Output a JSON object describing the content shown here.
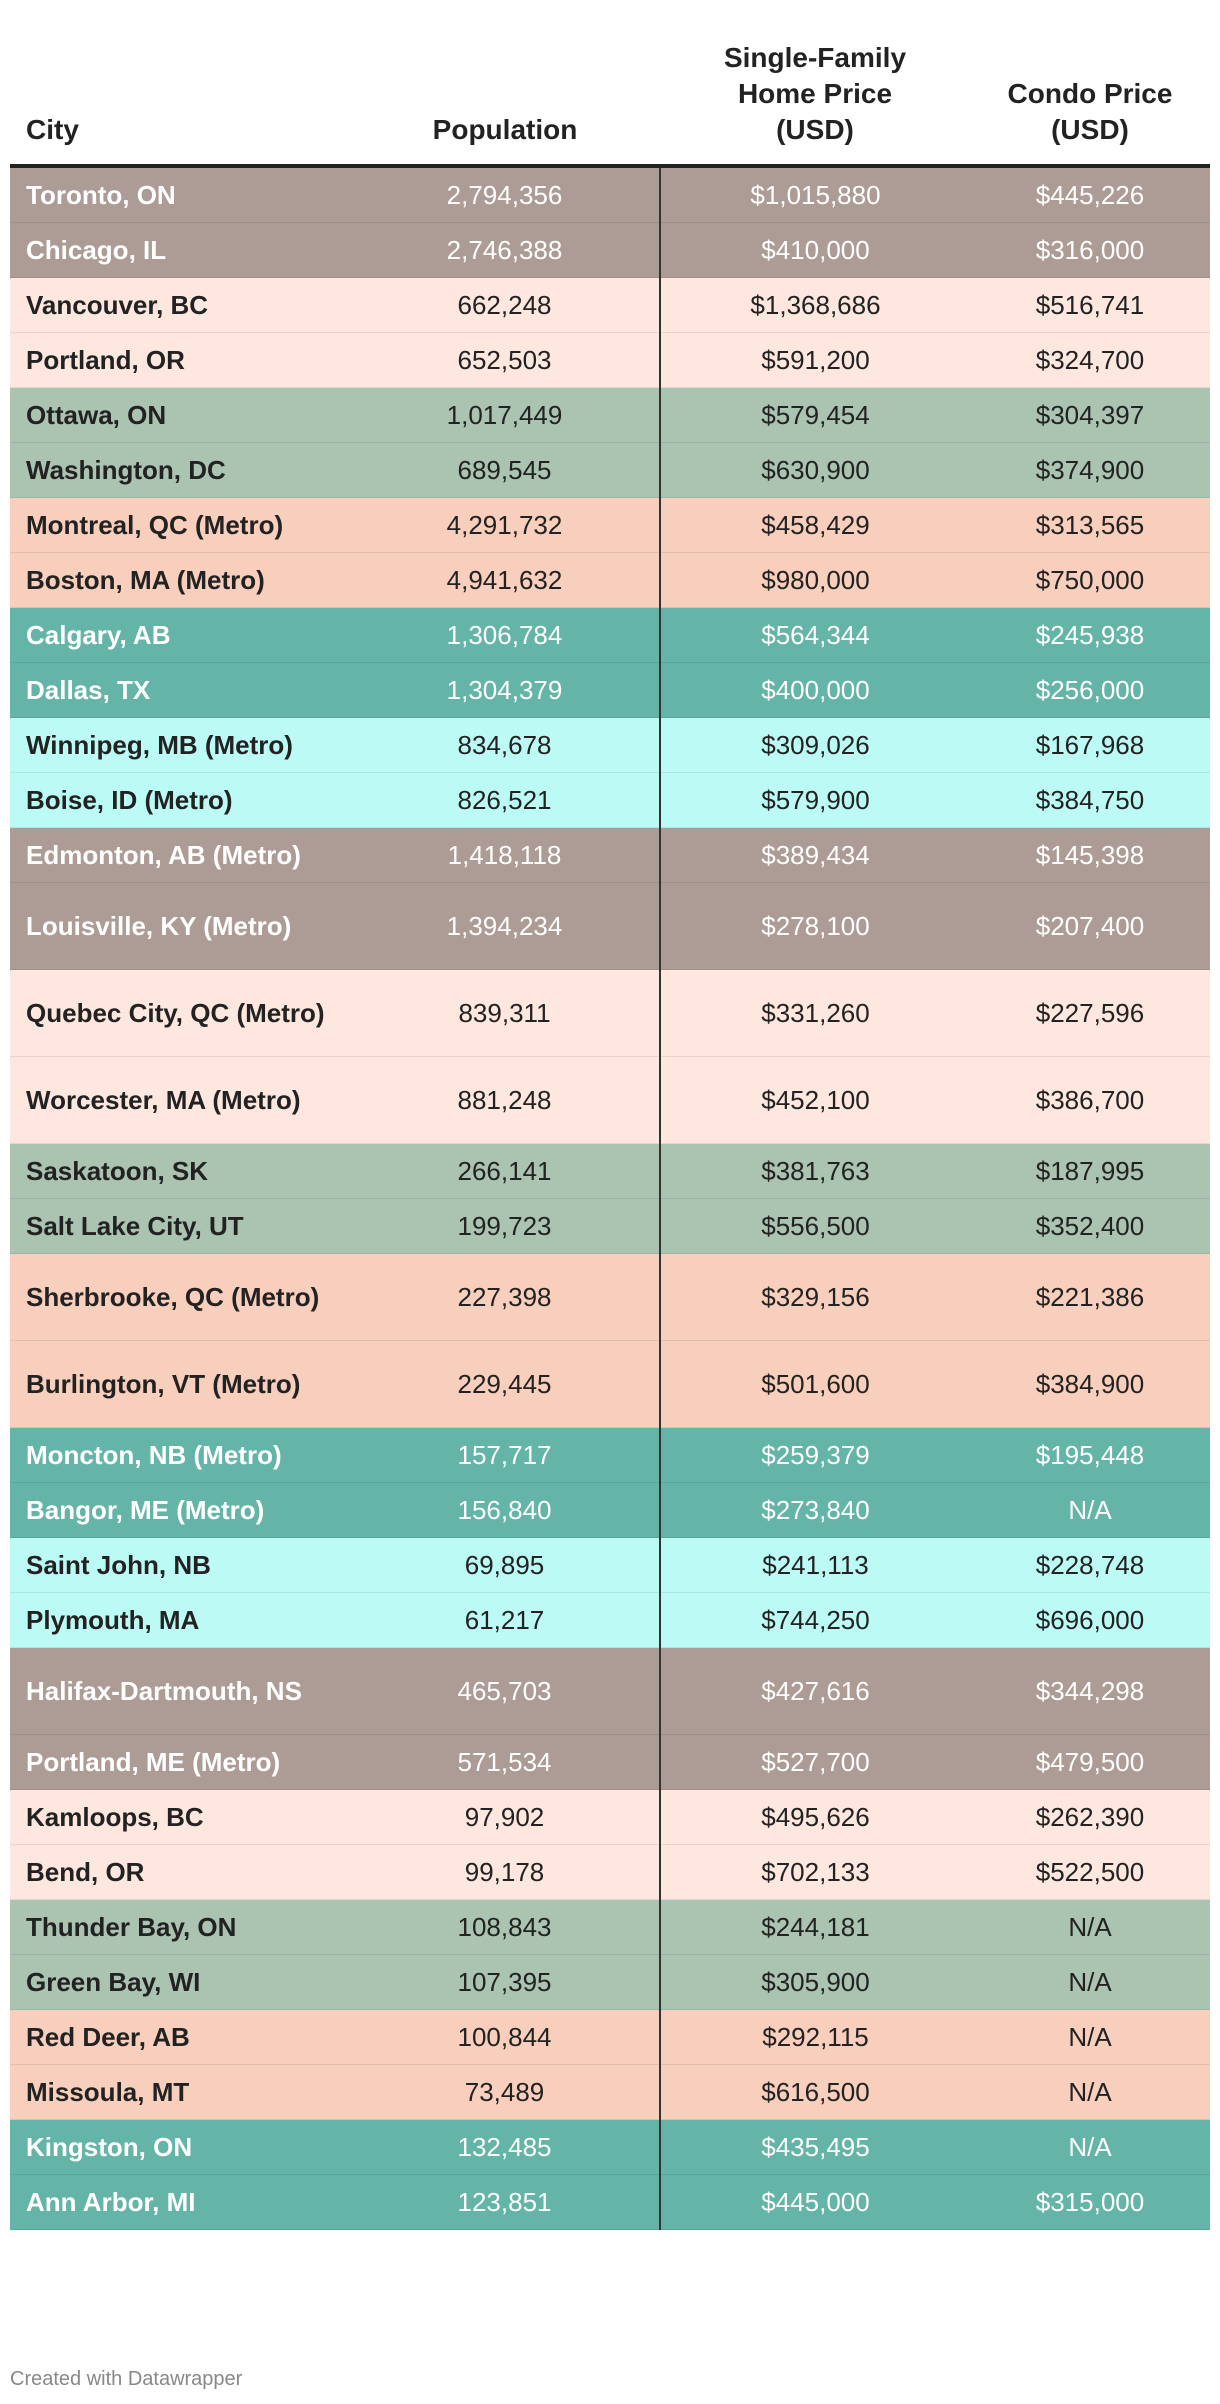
{
  "chart_data": {
    "type": "table",
    "columns": [
      "City",
      "Population",
      "Single-Family\nHome Price\n(USD)",
      "Condo Price\n(USD)"
    ],
    "row_colors": [
      "#ac9c95",
      "#fde7df",
      "#abc3b1",
      "#f8cfbc",
      "#64b4a8",
      "#bcfaf6"
    ],
    "rows": [
      {
        "city": "Toronto, ON",
        "population": "2,794,356",
        "home_price": "$1,015,880",
        "condo_price": "$445,226"
      },
      {
        "city": "Chicago, IL",
        "population": "2,746,388",
        "home_price": "$410,000",
        "condo_price": "$316,000"
      },
      {
        "city": "Vancouver, BC",
        "population": "662,248",
        "home_price": "$1,368,686",
        "condo_price": "$516,741"
      },
      {
        "city": "Portland, OR",
        "population": "652,503",
        "home_price": "$591,200",
        "condo_price": "$324,700"
      },
      {
        "city": "Ottawa, ON",
        "population": "1,017,449",
        "home_price": "$579,454",
        "condo_price": "$304,397"
      },
      {
        "city": "Washington, DC",
        "population": "689,545",
        "home_price": "$630,900",
        "condo_price": "$374,900"
      },
      {
        "city": "Montreal, QC (Metro)",
        "population": "4,291,732",
        "home_price": "$458,429",
        "condo_price": "$313,565"
      },
      {
        "city": "Boston, MA (Metro)",
        "population": "4,941,632",
        "home_price": "$980,000",
        "condo_price": "$750,000"
      },
      {
        "city": "Calgary, AB",
        "population": "1,306,784",
        "home_price": "$564,344",
        "condo_price": "$245,938"
      },
      {
        "city": "Dallas, TX",
        "population": "1,304,379",
        "home_price": "$400,000",
        "condo_price": "$256,000"
      },
      {
        "city": "Winnipeg, MB (Metro)",
        "population": "834,678",
        "home_price": "$309,026",
        "condo_price": "$167,968"
      },
      {
        "city": "Boise, ID (Metro)",
        "population": "826,521",
        "home_price": "$579,900",
        "condo_price": "$384,750"
      },
      {
        "city": "Edmonton, AB (Metro)",
        "population": "1,418,118",
        "home_price": "$389,434",
        "condo_price": "$145,398"
      },
      {
        "city": "Louisville, KY (Metro)",
        "population": "1,394,234",
        "home_price": "$278,100",
        "condo_price": "$207,400"
      },
      {
        "city": "Quebec City, QC (Metro)",
        "population": "839,311",
        "home_price": "$331,260",
        "condo_price": "$227,596"
      },
      {
        "city": "Worcester, MA (Metro)",
        "population": "881,248",
        "home_price": "$452,100",
        "condo_price": "$386,700"
      },
      {
        "city": "Saskatoon, SK",
        "population": "266,141",
        "home_price": "$381,763",
        "condo_price": "$187,995"
      },
      {
        "city": "Salt Lake City, UT",
        "population": "199,723",
        "home_price": "$556,500",
        "condo_price": "$352,400"
      },
      {
        "city": "Sherbrooke, QC (Metro)",
        "population": "227,398",
        "home_price": "$329,156",
        "condo_price": "$221,386"
      },
      {
        "city": "Burlington, VT (Metro)",
        "population": "229,445",
        "home_price": "$501,600",
        "condo_price": "$384,900"
      },
      {
        "city": "Moncton, NB (Metro)",
        "population": "157,717",
        "home_price": "$259,379",
        "condo_price": "$195,448"
      },
      {
        "city": "Bangor, ME (Metro)",
        "population": "156,840",
        "home_price": "$273,840",
        "condo_price": "N/A"
      },
      {
        "city": "Saint John, NB",
        "population": "69,895",
        "home_price": "$241,113",
        "condo_price": "$228,748"
      },
      {
        "city": "Plymouth, MA",
        "population": "61,217",
        "home_price": "$744,250",
        "condo_price": "$696,000"
      },
      {
        "city": "Halifax-Dartmouth, NS",
        "population": "465,703",
        "home_price": "$427,616",
        "condo_price": "$344,298"
      },
      {
        "city": "Portland, ME (Metro)",
        "population": "571,534",
        "home_price": "$527,700",
        "condo_price": "$479,500"
      },
      {
        "city": "Kamloops, BC",
        "population": "97,902",
        "home_price": "$495,626",
        "condo_price": "$262,390"
      },
      {
        "city": "Bend, OR",
        "population": "99,178",
        "home_price": "$702,133",
        "condo_price": "$522,500"
      },
      {
        "city": "Thunder Bay, ON",
        "population": "108,843",
        "home_price": "$244,181",
        "condo_price": "N/A"
      },
      {
        "city": "Green Bay, WI",
        "population": "107,395",
        "home_price": "$305,900",
        "condo_price": "N/A"
      },
      {
        "city": "Red Deer, AB",
        "population": "100,844",
        "home_price": "$292,115",
        "condo_price": "N/A"
      },
      {
        "city": "Missoula, MT",
        "population": "73,489",
        "home_price": "$616,500",
        "condo_price": "N/A"
      },
      {
        "city": "Kingston, ON",
        "population": "132,485",
        "home_price": "$435,495",
        "condo_price": "N/A"
      },
      {
        "city": "Ann Arbor, MI",
        "population": "123,851",
        "home_price": "$445,000",
        "condo_price": "$315,000"
      }
    ]
  },
  "footer": "Created with Datawrapper"
}
